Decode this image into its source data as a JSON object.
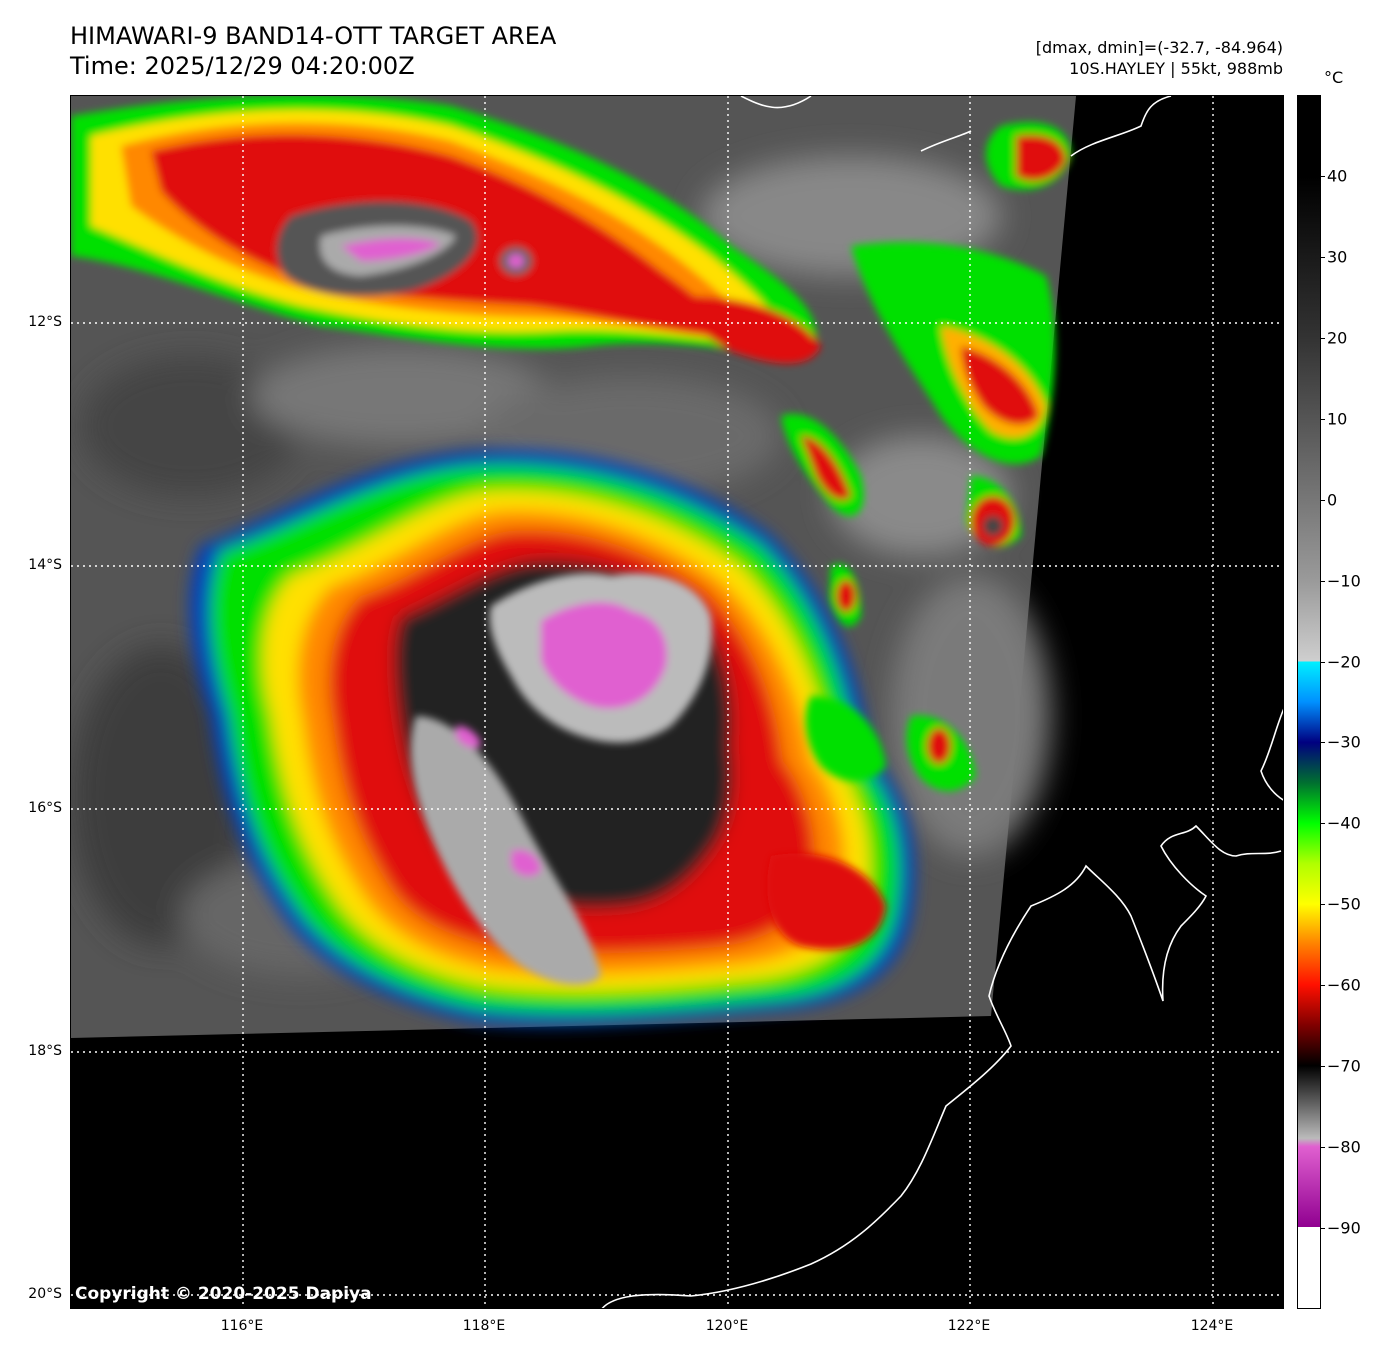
{
  "header": {
    "title_line1": "HIMAWARI-9 BAND14-OTT TARGET AREA",
    "title_line2": "Time: 2025/12/29 04:20:00Z",
    "info_line1": "[dmax, dmin]=(-32.7, -84.964)",
    "info_line2": "10S.HAYLEY | 55kt, 988mb"
  },
  "map": {
    "lat_labels": [
      "12°S",
      "14°S",
      "16°S",
      "18°S",
      "20°S"
    ],
    "lon_labels": [
      "116°E",
      "118°E",
      "120°E",
      "122°E",
      "124°E"
    ],
    "copyright": "Copyright © 2020-2025 Dapiya",
    "colors": {
      "no_data": "#000000",
      "coastline": "#ffffff",
      "gridline": "#ffffff"
    }
  },
  "colorbar": {
    "unit": "°C",
    "ticks": [
      "40",
      "30",
      "20",
      "10",
      "0",
      "−10",
      "−20",
      "−30",
      "−40",
      "−50",
      "−60",
      "−70",
      "−80",
      "−90"
    ],
    "tick_values": [
      40,
      30,
      20,
      10,
      0,
      -10,
      -20,
      -30,
      -40,
      -50,
      -60,
      -70,
      -80,
      -90
    ],
    "range": [
      -100,
      50
    ]
  }
}
